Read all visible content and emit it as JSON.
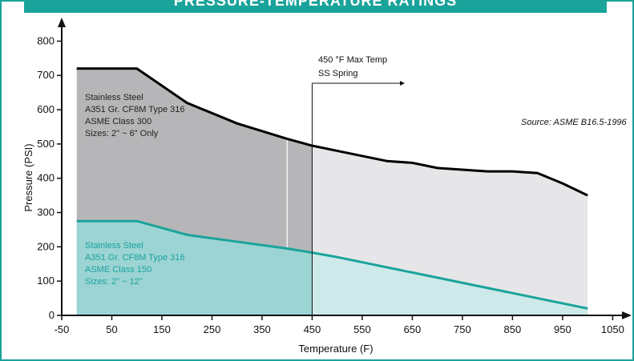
{
  "chart_data": {
    "type": "area",
    "title": "PRESSURE-TEMPERATURE RATINGS",
    "xlabel": "Temperature (F)",
    "ylabel": "Pressure (PSI)",
    "xlim": [
      -50,
      1075
    ],
    "ylim": [
      0,
      850
    ],
    "x_ticks": [
      -50,
      50,
      150,
      250,
      350,
      450,
      550,
      650,
      750,
      850,
      950,
      1050
    ],
    "y_ticks": [
      0,
      100,
      200,
      300,
      400,
      500,
      600,
      700,
      800
    ],
    "series": [
      {
        "name": "ASME Class 300",
        "color": "#000000",
        "fill_left": "#b6b6b8",
        "fill_right": "#e6e6e8",
        "x": [
          -20,
          100,
          200,
          300,
          400,
          450,
          500,
          600,
          650,
          700,
          800,
          850,
          900,
          950,
          1000
        ],
        "y": [
          720,
          720,
          620,
          560,
          515,
          495,
          480,
          450,
          445,
          430,
          420,
          420,
          415,
          385,
          350
        ]
      },
      {
        "name": "ASME Class 150",
        "color": "#1aa39a",
        "fill_left": "#9cd4d4",
        "fill_right": "#cde9ea",
        "x": [
          -20,
          100,
          200,
          300,
          400,
          450,
          500,
          600,
          700,
          800,
          900,
          1000
        ],
        "y": [
          275,
          275,
          235,
          215,
          195,
          183,
          170,
          140,
          110,
          80,
          50,
          20
        ]
      }
    ],
    "annotations": {
      "max_temp_x": 450,
      "max_temp_label_1": "450 °F Max Temp",
      "max_temp_label_2": "SS Spring",
      "separator_x": 400,
      "source": "Source: ASME B16.5-1996"
    }
  },
  "notes": {
    "class300": [
      "Stainless Steel",
      "A351 Gr. CF8M Type 316",
      "ASME Class 300",
      "Sizes:  2\" ~ 6\" Only"
    ],
    "class150": [
      "Stainless Steel",
      "A351 Gr. CF8M Type 316",
      "ASME Class 150",
      "Sizes:  2\" ~ 12\""
    ]
  }
}
